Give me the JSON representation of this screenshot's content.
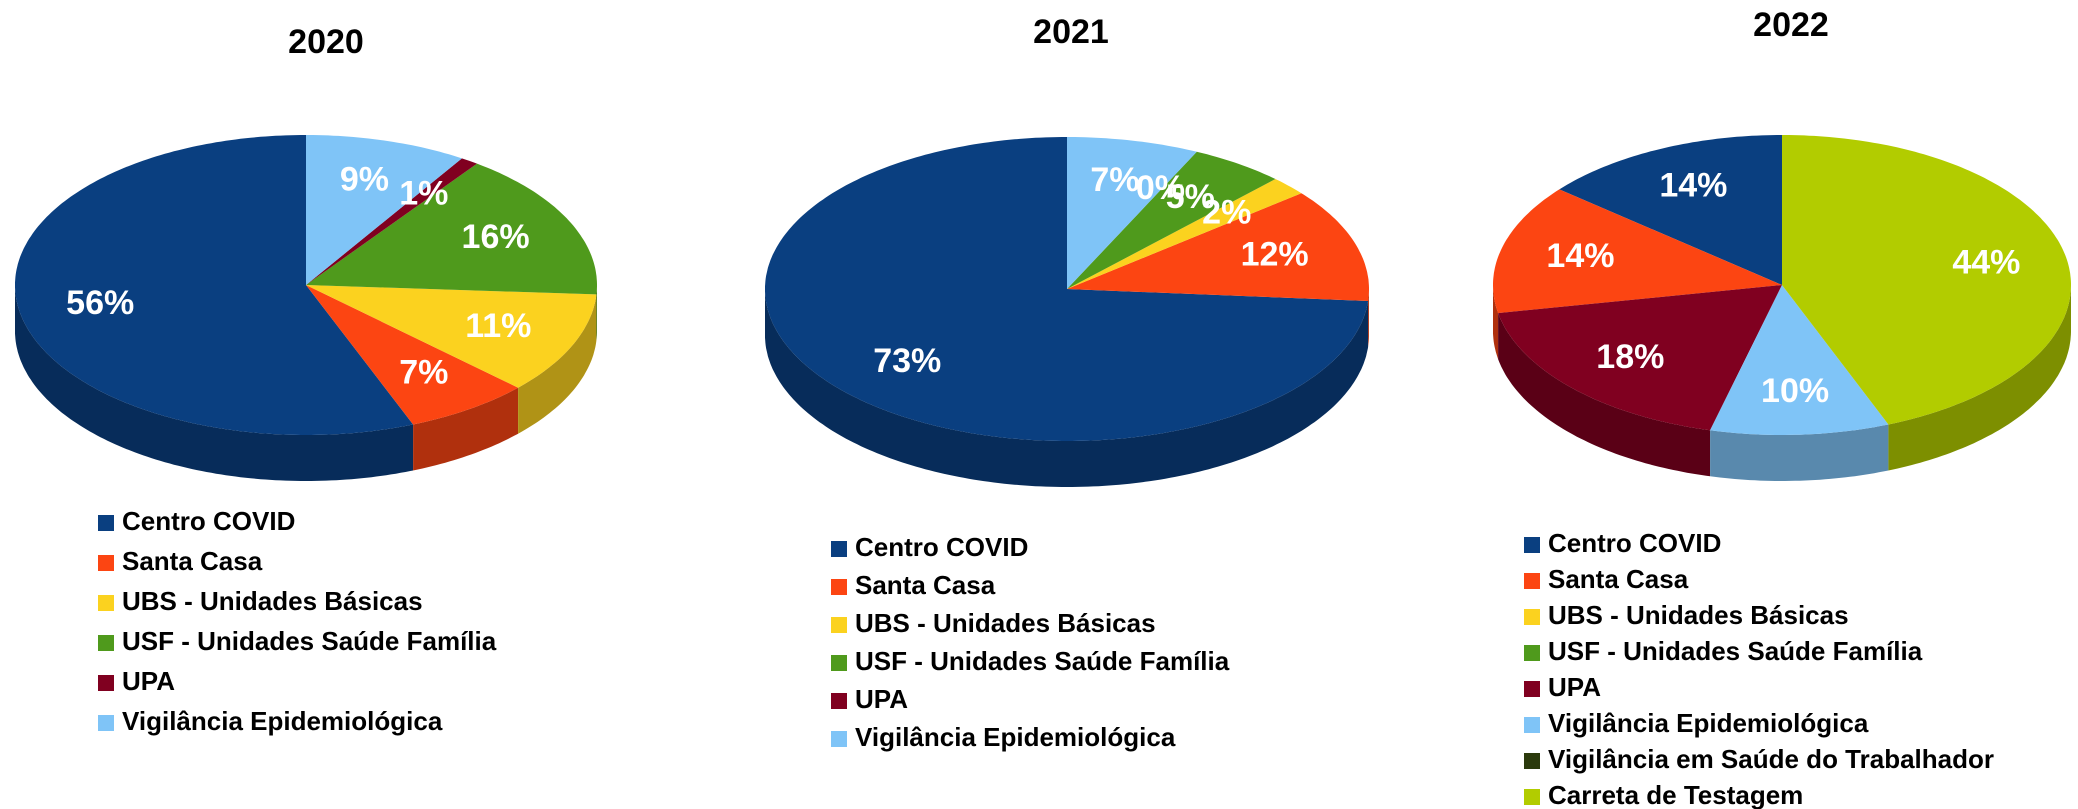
{
  "chart_data": [
    {
      "type": "pie",
      "title": "2020",
      "categories": [
        "Centro COVID",
        "Santa Casa",
        "UBS - Unidades Básicas",
        "USF - Unidades Saúde Família",
        "UPA",
        "Vigilância Epidemiológica"
      ],
      "values": [
        56,
        7,
        11,
        16,
        1,
        9
      ],
      "value_labels": [
        "56%",
        "7%",
        "11%",
        "16%",
        "1%",
        "9%"
      ],
      "colors": [
        "#0a3f80",
        "#fc4512",
        "#fbd21f",
        "#4f9a1c",
        "#800020",
        "#7fc4f7"
      ]
    },
    {
      "type": "pie",
      "title": "2021",
      "categories": [
        "Centro COVID",
        "Santa Casa",
        "UBS - Unidades Básicas",
        "USF - Unidades Saúde Família",
        "UPA",
        "Vigilância Epidemiológica"
      ],
      "values": [
        73,
        12,
        2,
        5,
        0,
        7
      ],
      "value_labels": [
        "73%",
        "12%",
        "2%",
        "5%",
        "0%",
        "7%"
      ],
      "colors": [
        "#0a3f80",
        "#fc4512",
        "#fbd21f",
        "#4f9a1c",
        "#800020",
        "#7fc4f7"
      ]
    },
    {
      "type": "pie",
      "title": "2022",
      "categories": [
        "Centro COVID",
        "Santa Casa",
        "UBS - Unidades Básicas",
        "USF - Unidades Saúde Família",
        "UPA",
        "Vigilância Epidemiológica",
        "Vigilância em Saúde do Trabalhador",
        "Carreta de Testagem"
      ],
      "values": [
        14,
        14,
        0,
        0,
        18,
        10,
        0,
        44
      ],
      "value_labels": [
        "14%",
        "14%",
        null,
        null,
        "18%",
        "10%",
        null,
        "44%"
      ],
      "colors": [
        "#0a3f80",
        "#fc4512",
        "#fbd21f",
        "#4f9a1c",
        "#800020",
        "#7fc4f7",
        "#2b3a0c",
        "#b2cc00"
      ]
    }
  ]
}
